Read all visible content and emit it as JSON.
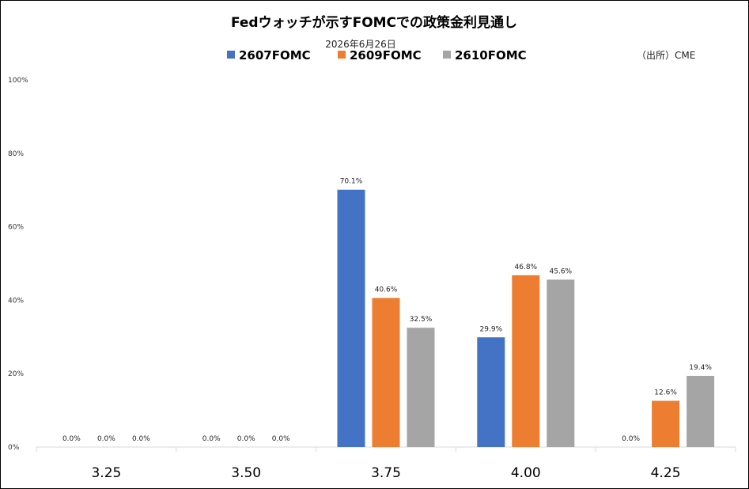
{
  "chart_data": {
    "type": "bar",
    "title": "Fedウォッチが示すFOMCでの政策金利見通し",
    "subtitle": "2026年6月26日",
    "source": "（出所）CME",
    "categories": [
      "3.25",
      "3.50",
      "3.75",
      "4.00",
      "4.25"
    ],
    "series": [
      {
        "name": "2607FOMC",
        "color": "#4472C4",
        "values": [
          0.0,
          0.0,
          70.1,
          29.9,
          0.0
        ]
      },
      {
        "name": "2609FOMC",
        "color": "#ED7D31",
        "values": [
          0.0,
          0.0,
          40.6,
          46.8,
          12.6
        ]
      },
      {
        "name": "2610FOMC",
        "color": "#A5A5A5",
        "values": [
          0.0,
          0.0,
          32.5,
          45.6,
          19.4
        ]
      }
    ],
    "ylim": [
      0,
      100
    ],
    "yticks": [
      "0%",
      "20%",
      "40%",
      "60%",
      "80%",
      "100%"
    ],
    "legend_position": "top",
    "grid": false,
    "value_suffix": "%"
  }
}
